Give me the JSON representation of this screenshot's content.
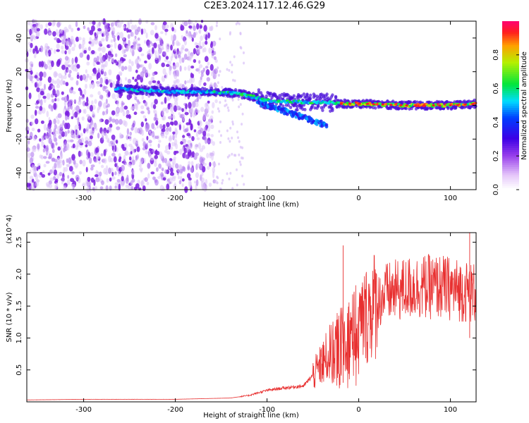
{
  "title": "C2E3.2024.117.12.46.G29",
  "chart_data": [
    {
      "type": "heatmap",
      "xlabel": "Height of straight line (km)",
      "ylabel": "Frequency (Hz)",
      "xlim": [
        -362,
        128
      ],
      "ylim": [
        -50,
        50
      ],
      "xticks": [
        -300,
        -200,
        -100,
        0,
        100
      ],
      "yticks": [
        -40,
        -20,
        0,
        20,
        40
      ],
      "colorbar": {
        "label": "Normalized spectral amplitude",
        "range": [
          0.0,
          1.0
        ],
        "ticks": [
          0.0,
          0.2,
          0.4,
          0.6,
          0.8
        ]
      },
      "ridge": [
        {
          "x": -265,
          "y": 10
        },
        {
          "x": -240,
          "y": 9
        },
        {
          "x": -200,
          "y": 8
        },
        {
          "x": -160,
          "y": 8
        },
        {
          "x": -130,
          "y": 7
        },
        {
          "x": -100,
          "y": 3
        },
        {
          "x": -70,
          "y": 2
        },
        {
          "x": -40,
          "y": 2
        },
        {
          "x": -20,
          "y": 1
        },
        {
          "x": 0,
          "y": 1
        },
        {
          "x": 50,
          "y": 0
        },
        {
          "x": 100,
          "y": 0
        },
        {
          "x": 128,
          "y": 1
        }
      ],
      "noise_region_x": [
        -362,
        -155
      ]
    },
    {
      "type": "line",
      "xlabel": "Height of straight line (km)",
      "ylabel": "SNR (10 * v/v)",
      "y_multiplier": "(x10^4)",
      "xlim": [
        -362,
        128
      ],
      "ylim": [
        0,
        2.65
      ],
      "xticks": [
        -300,
        -200,
        -100,
        0,
        100
      ],
      "yticks": [
        0.5,
        1.0,
        1.5,
        2.0,
        2.5
      ],
      "yticklabels": [
        "0.5",
        "1.0",
        "1.5",
        "2.0",
        "2.5"
      ],
      "series": [
        {
          "name": "SNR",
          "color": "#e83030",
          "envelope": [
            {
              "x": -362,
              "y": 0.03
            },
            {
              "x": -300,
              "y": 0.04
            },
            {
              "x": -200,
              "y": 0.04
            },
            {
              "x": -140,
              "y": 0.06
            },
            {
              "x": -120,
              "y": 0.1
            },
            {
              "x": -100,
              "y": 0.18
            },
            {
              "x": -80,
              "y": 0.22
            },
            {
              "x": -60,
              "y": 0.25
            },
            {
              "x": -45,
              "y": 0.5
            },
            {
              "x": -30,
              "y": 0.8
            },
            {
              "x": -15,
              "y": 1.0
            },
            {
              "x": 0,
              "y": 1.2
            },
            {
              "x": 15,
              "y": 1.5
            },
            {
              "x": 30,
              "y": 1.7
            },
            {
              "x": 60,
              "y": 1.8
            },
            {
              "x": 90,
              "y": 1.8
            },
            {
              "x": 110,
              "y": 1.75
            },
            {
              "x": 128,
              "y": 1.7
            }
          ]
        }
      ]
    }
  ]
}
